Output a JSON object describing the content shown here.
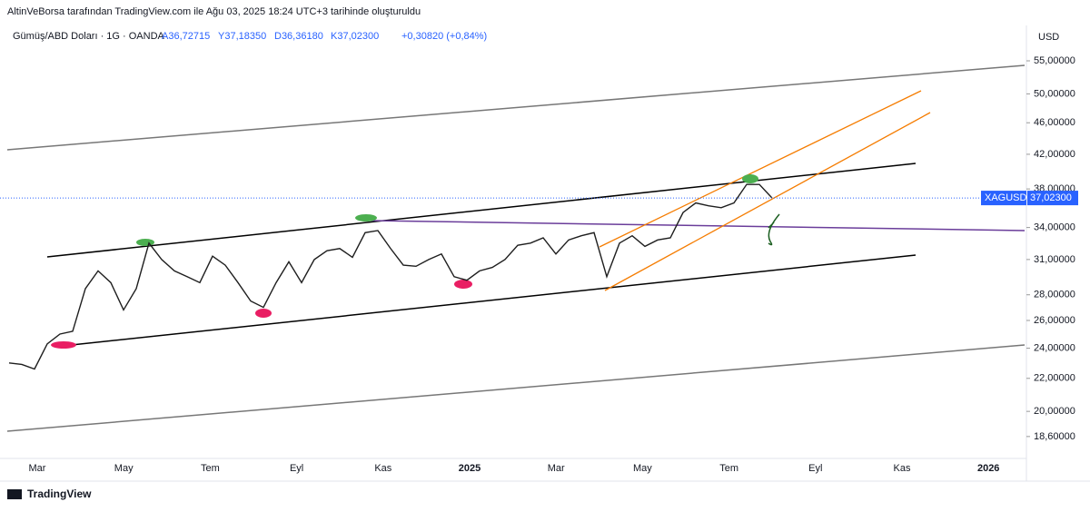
{
  "chart_data": {
    "type": "line",
    "log_scale": true,
    "header": "AltinVeBorsa tarafından TradingView.com ile Ağu 03, 2025 18:24 UTC+3 tarihinde oluşturuldu",
    "symbol": "Gümüş/ABD Doları · 1G · OANDA",
    "ohlc_labels": [
      "A36,72715",
      "Y37,18350",
      "D36,36180",
      "K37,02300",
      "+0,30820 (+0,84%)"
    ],
    "currency": "USD",
    "series": [
      {
        "name": "XAGUSD",
        "color": "#1e1e1e",
        "values": [
          23,
          22.9,
          22.6,
          24.3,
          25,
          25.2,
          28.5,
          30,
          29,
          26.8,
          28.5,
          32.5,
          31,
          30,
          29.5,
          29,
          31.3,
          30.5,
          29,
          27.5,
          27,
          29,
          30.8,
          29,
          31,
          31.8,
          32,
          31.2,
          33.5,
          33.7,
          32,
          30.5,
          30.4,
          31,
          31.5,
          29.5,
          29.2,
          30,
          30.3,
          31,
          32.3,
          32.5,
          33,
          31.5,
          32.8,
          33.2,
          33.5,
          29.5,
          32.5,
          33.2,
          32.2,
          32.8,
          33,
          35.5,
          36.5,
          36.2,
          36,
          36.5,
          38.5,
          38.5,
          37.023
        ]
      }
    ],
    "last_price": {
      "value": 37.023,
      "label": "37,02300"
    },
    "x_labels": [
      "Mar",
      "May",
      "Tem",
      "Eyl",
      "Kas",
      "2025",
      "Mar",
      "May",
      "Tem",
      "Eyl",
      "Kas",
      "2026"
    ],
    "ylim": [
      17.46,
      60.6
    ],
    "yticks": [
      {
        "value": 18.6,
        "label": "18,60000"
      },
      {
        "value": 20,
        "label": "20,00000"
      },
      {
        "value": 22,
        "label": "22,00000"
      },
      {
        "value": 24,
        "label": "24,00000"
      },
      {
        "value": 26,
        "label": "26,00000"
      },
      {
        "value": 28,
        "label": "28,00000"
      },
      {
        "value": 31,
        "label": "31,00000"
      },
      {
        "value": 34,
        "label": "34,00000"
      },
      {
        "value": 38,
        "label": "38,00000"
      },
      {
        "value": 42,
        "label": "42,00000"
      },
      {
        "value": 46,
        "label": "46,00000"
      },
      {
        "value": 50,
        "label": "50,00000"
      },
      {
        "value": 55,
        "label": "55,00000"
      }
    ],
    "footer": "TradingView"
  }
}
